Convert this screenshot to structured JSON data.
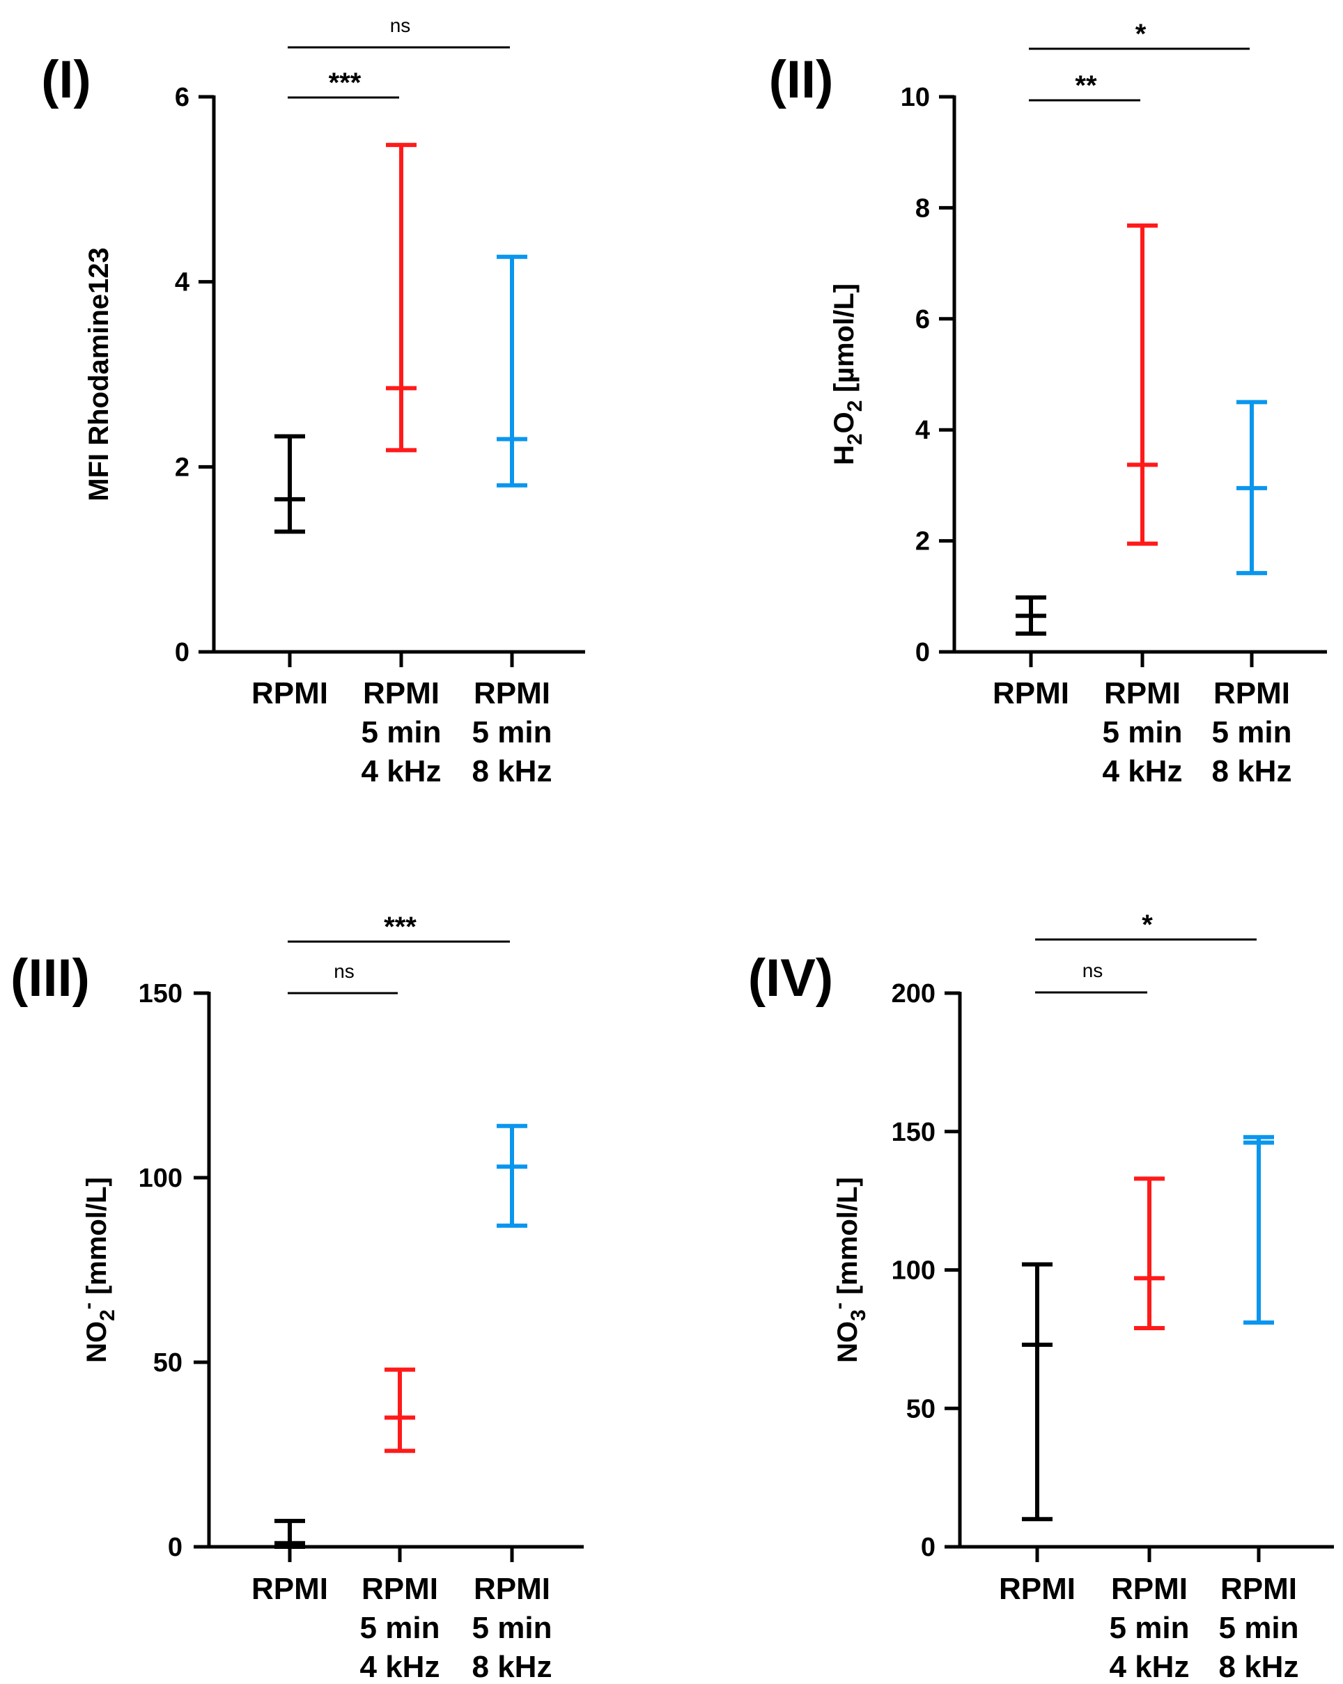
{
  "colors": {
    "RPMI": "#000000",
    "RPMI 5 min 4 kHz": "#ff1a1a",
    "RPMI 5 min 8 kHz": "#0a96ee"
  },
  "chart_data": [
    {
      "type": "scatter",
      "panel": "(I)",
      "ylabel": "MFI Rhodamine123",
      "ylim": [
        0,
        6
      ],
      "yticks": [
        0,
        2,
        4,
        6
      ],
      "categories": [
        [
          "RPMI"
        ],
        [
          "RPMI",
          "5 min",
          "4 kHz"
        ],
        [
          "RPMI",
          "5 min",
          "8 kHz"
        ]
      ],
      "series": [
        {
          "category": "RPMI",
          "center": 1.65,
          "low": 1.3,
          "high": 2.33
        },
        {
          "category": "RPMI 5 min 4 kHz",
          "center": 2.85,
          "low": 2.18,
          "high": 5.48
        },
        {
          "category": "RPMI 5 min 8 kHz",
          "center": 2.3,
          "low": 1.8,
          "high": 4.27
        }
      ],
      "significance": [
        {
          "from": 0,
          "to": 1,
          "label": "***"
        },
        {
          "from": 0,
          "to": 2,
          "label": "ns"
        }
      ]
    },
    {
      "type": "scatter",
      "panel": "(II)",
      "ylabel": "H2O2 [µmol/L]",
      "ylabel_parts": {
        "pre": "H",
        "sub1": "2",
        "mid": "O",
        "sub2": "2",
        "post": " [µmol/L]"
      },
      "ylim": [
        0,
        10
      ],
      "yticks": [
        0,
        2,
        4,
        6,
        8,
        10
      ],
      "categories": [
        [
          "RPMI"
        ],
        [
          "RPMI",
          "5 min",
          "4 kHz"
        ],
        [
          "RPMI",
          "5 min",
          "8 kHz"
        ]
      ],
      "series": [
        {
          "category": "RPMI",
          "center": 0.65,
          "low": 0.33,
          "high": 0.98
        },
        {
          "category": "RPMI 5 min 4 kHz",
          "center": 3.37,
          "low": 1.95,
          "high": 7.68
        },
        {
          "category": "RPMI 5 min 8 kHz",
          "center": 2.95,
          "low": 1.42,
          "high": 4.5
        }
      ],
      "significance": [
        {
          "from": 0,
          "to": 1,
          "label": "**"
        },
        {
          "from": 0,
          "to": 2,
          "label": "*"
        }
      ]
    },
    {
      "type": "scatter",
      "panel": "(III)",
      "ylabel": "NO2- [mmol/L]",
      "ylabel_parts": {
        "pre": "NO",
        "sub1": "2",
        "sup": "-",
        "post": " [mmol/L]"
      },
      "ylim": [
        0,
        150
      ],
      "yticks": [
        0,
        50,
        100,
        150
      ],
      "categories": [
        [
          "RPMI"
        ],
        [
          "RPMI",
          "5 min",
          "4 kHz"
        ],
        [
          "RPMI",
          "5 min",
          "8 kHz"
        ]
      ],
      "series": [
        {
          "category": "RPMI",
          "center": 1,
          "low": 0,
          "high": 7
        },
        {
          "category": "RPMI 5 min 4 kHz",
          "center": 35,
          "low": 26,
          "high": 48
        },
        {
          "category": "RPMI 5 min 8 kHz",
          "center": 103,
          "low": 87,
          "high": 114
        }
      ],
      "significance": [
        {
          "from": 0,
          "to": 1,
          "label": "ns"
        },
        {
          "from": 0,
          "to": 2,
          "label": "***"
        }
      ]
    },
    {
      "type": "scatter",
      "panel": "(IV)",
      "ylabel": "NO3- [mmol/L]",
      "ylabel_parts": {
        "pre": "NO",
        "sub1": "3",
        "sup": "-",
        "post": " [mmol/L]"
      },
      "ylim": [
        0,
        200
      ],
      "yticks": [
        0,
        50,
        100,
        150,
        200
      ],
      "categories": [
        [
          "RPMI"
        ],
        [
          "RPMI",
          "5 min",
          "4 kHz"
        ],
        [
          "RPMI",
          "5 min",
          "8 kHz"
        ]
      ],
      "series": [
        {
          "category": "RPMI",
          "center": 73,
          "low": 10,
          "high": 102
        },
        {
          "category": "RPMI 5 min 4 kHz",
          "center": 97,
          "low": 79,
          "high": 133
        },
        {
          "category": "RPMI 5 min 8 kHz",
          "center": 146,
          "low": 81,
          "high": 148
        }
      ],
      "significance": [
        {
          "from": 0,
          "to": 1,
          "label": "ns"
        },
        {
          "from": 0,
          "to": 2,
          "label": "*"
        }
      ]
    }
  ]
}
